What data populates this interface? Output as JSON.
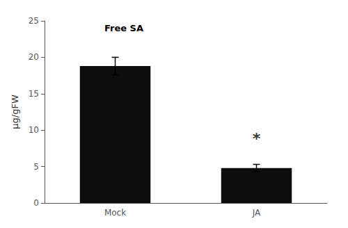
{
  "chart_data": {
    "type": "bar",
    "categories": [
      "Mock",
      "JA"
    ],
    "values": [
      18.8,
      4.8
    ],
    "errors": [
      1.2,
      0.5
    ],
    "color": "#0d0d0d",
    "ylabel": "μg/gFW",
    "ylim": [
      0,
      25
    ],
    "yticks": [
      0,
      5,
      10,
      15,
      20,
      25
    ],
    "grid": false,
    "annotations": [
      {
        "text": "Free SA"
      },
      {
        "text": "*",
        "x": "JA",
        "y": 8.8
      }
    ]
  }
}
